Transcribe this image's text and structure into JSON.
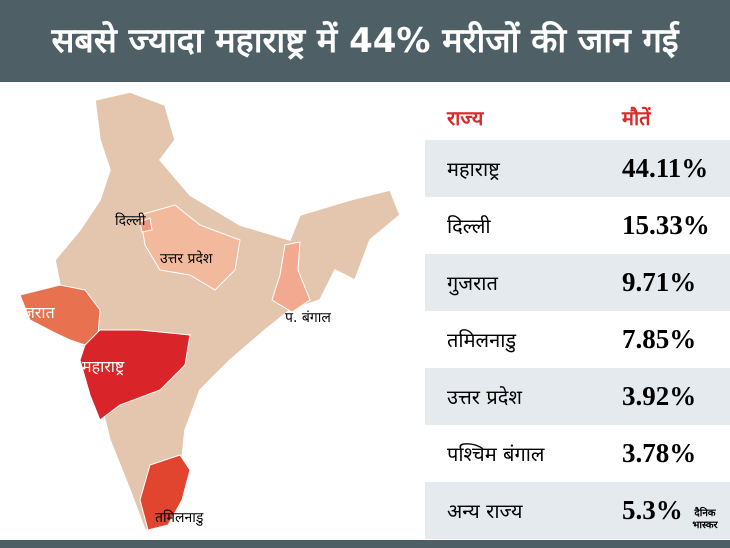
{
  "header": {
    "title": "सबसे ज्यादा महाराष्ट्र में 44% मरीजों की जान गई"
  },
  "map": {
    "labels": [
      "दिल्ली",
      "उत्तर प्रदेश",
      "गुजरात",
      "महाराष्ट्र",
      "प. बंगाल",
      "तमिलनाडु"
    ]
  },
  "table": {
    "header": [
      "राज्य",
      "मौतें"
    ],
    "rows": [
      [
        "महाराष्ट्र",
        "44.11%"
      ],
      [
        "दिल्ली",
        "15.33%"
      ],
      [
        "गुजरात",
        "9.71%"
      ],
      [
        "तमिलनाडु",
        "7.85%"
      ],
      [
        "उत्तर प्रदेश",
        "3.92%"
      ],
      [
        "पश्चिम बंगाल",
        "3.78%"
      ],
      [
        "अन्य राज्य",
        "5.3%"
      ]
    ]
  },
  "logo": {
    "line1": "दैनिक",
    "line2": "भास्कर"
  }
}
